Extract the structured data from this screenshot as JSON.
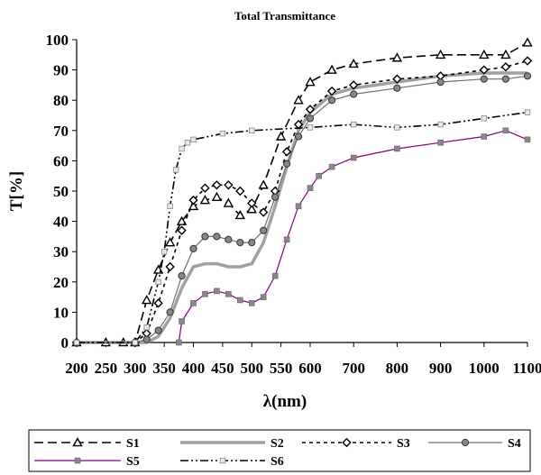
{
  "chart_data": {
    "type": "line",
    "title": "Total Transmittance",
    "xlabel": "λ(nm)",
    "ylabel": "T[%]",
    "xlim": [
      200,
      1100
    ],
    "ylim": [
      0,
      100
    ],
    "x_ticks": [
      "200",
      "250",
      "300",
      "350",
      "400",
      "450",
      "500",
      "550",
      "600",
      "700",
      "800",
      "900",
      "1000",
      "1100"
    ],
    "y_ticks": [
      "0",
      "10",
      "20",
      "30",
      "40",
      "50",
      "60",
      "70",
      "80",
      "90",
      "100"
    ],
    "grid": false,
    "legend_position": "bottom",
    "series": [
      {
        "name": "S1",
        "color": "#000000",
        "dash": "long-dash",
        "marker": "triangle",
        "x": [
          200,
          250,
          280,
          300,
          320,
          340,
          360,
          380,
          400,
          420,
          440,
          460,
          480,
          500,
          520,
          550,
          580,
          600,
          650,
          700,
          800,
          900,
          1000,
          1050,
          1100
        ],
        "y": [
          0,
          0,
          0,
          0,
          14,
          24,
          33,
          40,
          45,
          47,
          48,
          46,
          42,
          44,
          52,
          68,
          80,
          86,
          90,
          92,
          94,
          95,
          95,
          95,
          99
        ]
      },
      {
        "name": "S2",
        "color": "#a0a0a0",
        "dash": "solid",
        "marker": "none",
        "x": [
          200,
          300,
          320,
          340,
          360,
          380,
          400,
          420,
          440,
          460,
          480,
          500,
          520,
          540,
          560,
          580,
          600,
          650,
          700,
          800,
          900,
          1000,
          1050,
          1100
        ],
        "y": [
          0,
          0,
          0,
          2,
          8,
          18,
          25,
          26,
          26,
          25,
          25,
          26,
          33,
          45,
          58,
          70,
          76,
          82,
          84,
          86,
          88,
          89,
          89,
          89
        ]
      },
      {
        "name": "S3",
        "color": "#000000",
        "dash": "short-dash",
        "marker": "diamond",
        "x": [
          200,
          300,
          320,
          340,
          360,
          380,
          400,
          420,
          440,
          460,
          480,
          500,
          520,
          540,
          560,
          580,
          600,
          650,
          700,
          800,
          900,
          1000,
          1050,
          1100
        ],
        "y": [
          0,
          0,
          3,
          13,
          25,
          37,
          47,
          51,
          52,
          52,
          50,
          46,
          43,
          50,
          63,
          72,
          77,
          83,
          85,
          87,
          88,
          90,
          91,
          93
        ]
      },
      {
        "name": "S4",
        "color": "#6e6e6e",
        "dash": "solid",
        "marker": "circle",
        "x": [
          200,
          300,
          320,
          340,
          360,
          380,
          400,
          420,
          440,
          460,
          480,
          500,
          520,
          540,
          560,
          580,
          600,
          650,
          700,
          800,
          900,
          1000,
          1050,
          1100
        ],
        "y": [
          0,
          0,
          1,
          4,
          10,
          22,
          31,
          35,
          35,
          34,
          33,
          33,
          37,
          48,
          59,
          68,
          74,
          80,
          82,
          84,
          86,
          87,
          87,
          88
        ]
      },
      {
        "name": "S5",
        "color": "#800080",
        "dash": "solid",
        "marker": "square",
        "x": [
          375,
          380,
          400,
          420,
          440,
          460,
          480,
          500,
          520,
          540,
          560,
          580,
          600,
          620,
          650,
          700,
          800,
          900,
          1000,
          1050,
          1100
        ],
        "y": [
          0,
          7,
          13,
          16,
          17,
          16,
          14,
          13,
          15,
          22,
          34,
          45,
          51,
          55,
          58,
          61,
          64,
          66,
          68,
          70,
          67
        ]
      },
      {
        "name": "S6",
        "color": "#000000",
        "dash": "dash-dot-dot",
        "marker": "square-light",
        "x": [
          200,
          300,
          320,
          340,
          350,
          360,
          370,
          380,
          390,
          400,
          450,
          500,
          600,
          700,
          800,
          900,
          1000,
          1100
        ],
        "y": [
          0,
          0,
          5,
          20,
          30,
          45,
          57,
          64,
          66,
          67,
          69,
          70,
          71,
          72,
          71,
          72,
          74,
          76
        ]
      }
    ]
  }
}
